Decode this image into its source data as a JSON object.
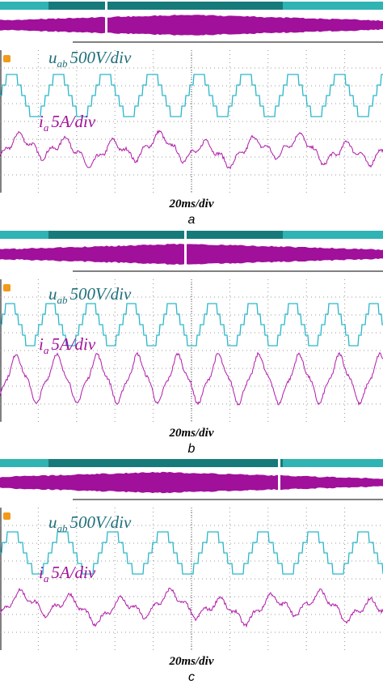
{
  "panels": [
    {
      "voltage_symbol": "u",
      "voltage_subscript": "ab",
      "voltage_scale": "500V/div",
      "current_symbol": "i",
      "current_subscript": "a",
      "current_scale": "5A/div",
      "time_scale": "20ms/div",
      "caption": "a"
    },
    {
      "voltage_symbol": "u",
      "voltage_subscript": "ab",
      "voltage_scale": "500V/div",
      "current_symbol": "i",
      "current_subscript": "a",
      "current_scale": "5A/div",
      "time_scale": "20ms/div",
      "caption": "b"
    },
    {
      "voltage_symbol": "u",
      "voltage_subscript": "ab",
      "voltage_scale": "500V/div",
      "current_symbol": "i",
      "current_subscript": "a",
      "current_scale": "5A/div",
      "time_scale": "20ms/div",
      "caption": "c"
    }
  ]
}
